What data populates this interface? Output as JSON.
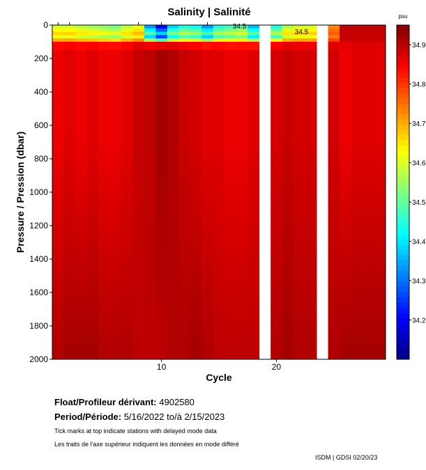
{
  "chart_data": {
    "type": "heatmap",
    "title": "Salinity | Salinité",
    "xlabel": "Cycle",
    "ylabel": "Pressure / Pression (dbar)",
    "colorbar_unit": "psu",
    "x_ticks": [
      10,
      20
    ],
    "y_ticks": [
      0,
      200,
      400,
      600,
      800,
      1000,
      1200,
      1400,
      1600,
      1800,
      2000
    ],
    "xlim": [
      0.5,
      29.5
    ],
    "ylim": [
      2000,
      0
    ],
    "color_range": [
      34.1,
      34.95
    ],
    "colorbar_ticks": [
      "34.2",
      "34.3",
      "34.4",
      "34.5",
      "34.6",
      "34.7",
      "34.8",
      "34.9"
    ],
    "contour_label": "34.5",
    "missing_cycles": [
      19,
      24
    ],
    "cycles": [
      1,
      2,
      3,
      4,
      5,
      6,
      7,
      8,
      9,
      10,
      11,
      12,
      13,
      14,
      15,
      16,
      17,
      18,
      19,
      20,
      21,
      22,
      23,
      24,
      25,
      26,
      27,
      28,
      29
    ],
    "surface_salinity": [
      34.58,
      34.58,
      34.56,
      34.54,
      34.52,
      34.5,
      34.56,
      34.6,
      34.3,
      34.15,
      34.35,
      34.42,
      34.4,
      34.3,
      34.42,
      34.45,
      34.48,
      34.33,
      null,
      34.42,
      34.55,
      34.58,
      34.58,
      null,
      34.72,
      34.9,
      34.9,
      34.9,
      34.9
    ],
    "mid_salinity": [
      34.86,
      34.87,
      34.86,
      34.87,
      34.86,
      34.86,
      34.87,
      34.89,
      34.9,
      34.92,
      34.91,
      34.89,
      34.88,
      34.87,
      34.87,
      34.86,
      34.86,
      34.87,
      null,
      34.88,
      34.89,
      34.88,
      34.88,
      null,
      34.88,
      34.86,
      34.87,
      34.87,
      34.87
    ],
    "deep_salinity": [
      34.91,
      34.92,
      34.92,
      34.92,
      34.91,
      34.91,
      34.91,
      34.9,
      34.9,
      34.9,
      34.91,
      34.91,
      34.92,
      34.91,
      34.9,
      34.9,
      34.9,
      34.9,
      null,
      34.91,
      34.92,
      34.91,
      34.91,
      null,
      34.91,
      34.92,
      34.92,
      34.92,
      34.92
    ],
    "delayed_mode_ticks": [
      1,
      2,
      8,
      10,
      14
    ]
  },
  "footer": {
    "float_label": "Float/Profileur dérivant:",
    "float_value": "4902580",
    "period_label": "Period/Période:",
    "period_value": "5/16/2022  to/à  2/15/2023",
    "note_en": "Tick marks at top indicate stations with delayed mode data",
    "note_fr": "Les traits de l'axe supérieur indiquent les données en mode différé",
    "credit": "ISDM | GDSI  02/20/23"
  }
}
